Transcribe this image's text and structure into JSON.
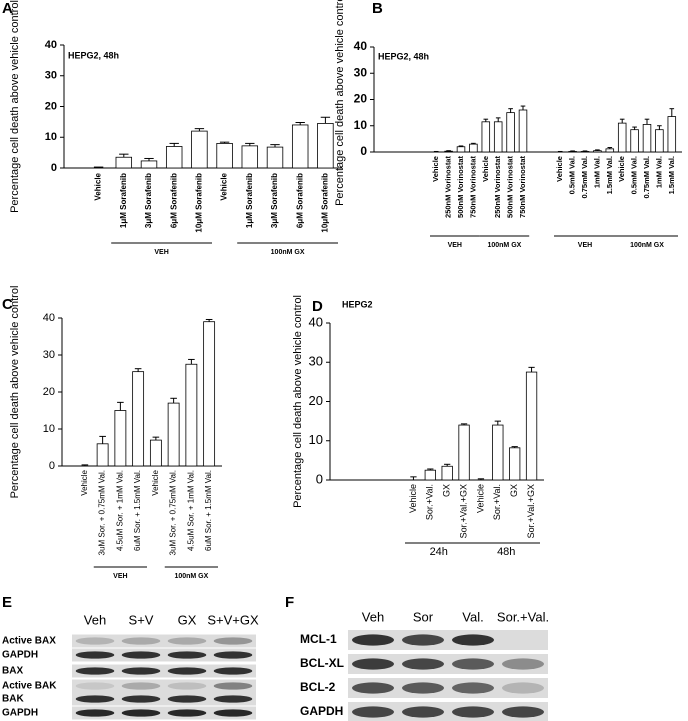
{
  "chart_data": [
    {
      "type": "bar",
      "panel_label": "A",
      "title": "HEPG2, 48h",
      "y_label": "Percentage cell death above vehicle control",
      "categories": [
        "Vehicle",
        "1μM Sorafenib",
        "3μM Sorafenib",
        "6μM Sorafenib",
        "10μM Sorafenib",
        "Vehicle",
        "1μM Sorafenib",
        "3μM Sorafenib",
        "6μM Sorafenib",
        "10μM Sorafenib"
      ],
      "values": [
        0,
        3.5,
        2.3,
        7,
        12,
        8,
        7.2,
        6.8,
        14,
        14.5
      ],
      "errors": [
        0.3,
        1,
        0.8,
        1,
        0.8,
        0.4,
        0.8,
        0.8,
        0.8,
        2
      ],
      "groups": [
        {
          "label": "VEH",
          "from": 1,
          "to": 4
        },
        {
          "label": "100nM GX",
          "from": 6,
          "to": 9
        }
      ],
      "color": "#ffffff",
      "ylim": [
        0,
        40
      ],
      "yticks": [
        0,
        10,
        20,
        30,
        40
      ]
    },
    {
      "type": "bar",
      "panel_label": "B",
      "title": "HEPG2, 48h",
      "y_label": "Percentage cell death above vehicle control",
      "categories": [
        "Vehicle",
        "250nM Vorinostat",
        "500nM Vorinostat",
        "750nM Vorinostat",
        "Vehicle",
        "250nM Vorinostat",
        "500nM Vorinostat",
        "750nM Vorinostat",
        null,
        null,
        "Vehicle",
        "0.5mM Val.",
        "0.75mM Val.",
        "1mM Val.",
        "1.5mM Val.",
        "Vehicle",
        "0.5mM Val.",
        "0.75mM Val.",
        "1mM Val.",
        "1.5mM Val."
      ],
      "values": [
        0,
        0.3,
        2,
        3,
        11.5,
        11.5,
        15,
        16,
        null,
        null,
        0,
        0.2,
        0.2,
        0.5,
        1.2,
        11,
        8.5,
        10.5,
        8.5,
        13.5
      ],
      "errors": [
        0.2,
        0.2,
        0.3,
        0.3,
        1,
        1.5,
        1.5,
        1.5,
        null,
        null,
        0.2,
        0.2,
        0.2,
        0.3,
        0.5,
        1.5,
        1,
        2,
        1.5,
        3
      ],
      "groups": [
        {
          "label": "VEH",
          "from": 0,
          "to": 3
        },
        {
          "label": "100nM GX",
          "from": 4,
          "to": 7
        },
        {
          "label": "VEH",
          "from": 10,
          "to": 14
        },
        {
          "label": "100nM GX",
          "from": 15,
          "to": 19
        }
      ],
      "color": "#ffffff",
      "ylim": [
        0,
        40
      ],
      "yticks": [
        0,
        10,
        20,
        30,
        40
      ]
    },
    {
      "type": "bar",
      "panel_label": "C",
      "y_label": "Percentage cell death above vehicle control",
      "categories": [
        "Vehicle",
        "3uM Sor. + 0.75mM Val.",
        "4.5uM Sor. + 1mM Val.",
        "6uM Sor. + 1.5mM Val.",
        "Vehicle",
        "3uM Sor. + 0.75mM Val.",
        "4.5uM Sor. + 1mM Val.",
        "6uM Sor. + 1.5mM Val."
      ],
      "values": [
        0,
        6,
        15,
        25.5,
        7,
        17,
        27.5,
        39
      ],
      "errors": [
        0.3,
        2,
        2.2,
        0.8,
        0.8,
        1.3,
        1.3,
        0.6
      ],
      "groups": [
        {
          "label": "VEH",
          "from": 1,
          "to": 3
        },
        {
          "label": "100nM GX",
          "from": 5,
          "to": 7
        }
      ],
      "color": "#ffffff",
      "ylim": [
        0,
        40
      ],
      "yticks": [
        0,
        10,
        20,
        30,
        40
      ]
    },
    {
      "type": "bar",
      "panel_label": "D",
      "title": "HEPG2",
      "y_label": "Percentage cell death above vehicle control",
      "categories": [
        "Vehicle",
        "Sor.+Val.",
        "GX",
        "Sor.+Val.+GX",
        "Vehicle",
        "Sor.+Val.",
        "GX",
        "Sor.+Val.+GX"
      ],
      "values": [
        0,
        2.5,
        3.5,
        14,
        0,
        14,
        8.2,
        27.5
      ],
      "errors": [
        0.8,
        0.3,
        0.5,
        0.3,
        0.3,
        1,
        0.3,
        1.2
      ],
      "groups": [
        {
          "label": "24h",
          "from": 0,
          "to": 3
        },
        {
          "label": "48h",
          "from": 4,
          "to": 7
        }
      ],
      "color": "#ffffff",
      "ylim": [
        0,
        40
      ],
      "yticks": [
        0,
        10,
        20,
        30,
        40
      ]
    }
  ],
  "blot_e": {
    "panel_label": "E",
    "lanes": [
      "Veh",
      "S+V",
      "GX",
      "S+V+GX"
    ],
    "rows": [
      "Active BAX",
      "GAPDH",
      "BAX",
      "Active BAK",
      "BAK",
      "GAPDH"
    ]
  },
  "blot_f": {
    "panel_label": "F",
    "lanes": [
      "Veh",
      "Sor",
      "Val.",
      "Sor.+Val."
    ],
    "rows": [
      "MCL-1",
      "BCL-XL",
      "BCL-2",
      "GAPDH"
    ]
  }
}
